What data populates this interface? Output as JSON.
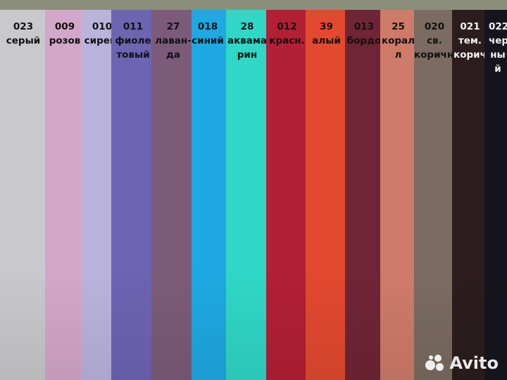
{
  "swatches": [
    {
      "code": "023",
      "name": [
        "серый"
      ],
      "color": "#c9c9cd"
    },
    {
      "code": "009",
      "name": [
        "розов"
      ],
      "color": "#d3a7c9"
    },
    {
      "code": "010",
      "name": [
        "сирен."
      ],
      "color": "#bab4dd"
    },
    {
      "code": "011",
      "name": [
        "фиоле",
        "товый"
      ],
      "color": "#6d64b2"
    },
    {
      "code": "27",
      "name": [
        "лаван-",
        "да"
      ],
      "color": "#7b5b79"
    },
    {
      "code": "018",
      "name": [
        "синий"
      ],
      "color": "#1ea9e2"
    },
    {
      "code": "28",
      "name": [
        "аквама",
        "рин"
      ],
      "color": "#30d7c6"
    },
    {
      "code": "012",
      "name": [
        "красн."
      ],
      "color": "#b31f35"
    },
    {
      "code": "39",
      "name": [
        "алый"
      ],
      "color": "#e2492f"
    },
    {
      "code": "013",
      "name": [
        "бордо"
      ],
      "color": "#6f2535"
    },
    {
      "code": "25",
      "name": [
        "корал",
        "л"
      ],
      "color": "#cf7b69"
    },
    {
      "code": "020",
      "name": [
        "св.",
        "коричн."
      ],
      "color": "#7b6b61"
    },
    {
      "code": "021",
      "name": [
        "тем.",
        "корич"
      ],
      "color": "#2b1d1d"
    },
    {
      "code": "022",
      "name": [
        "чер",
        "ны",
        "й"
      ],
      "color": "#15151f"
    }
  ],
  "watermark": "Avito"
}
